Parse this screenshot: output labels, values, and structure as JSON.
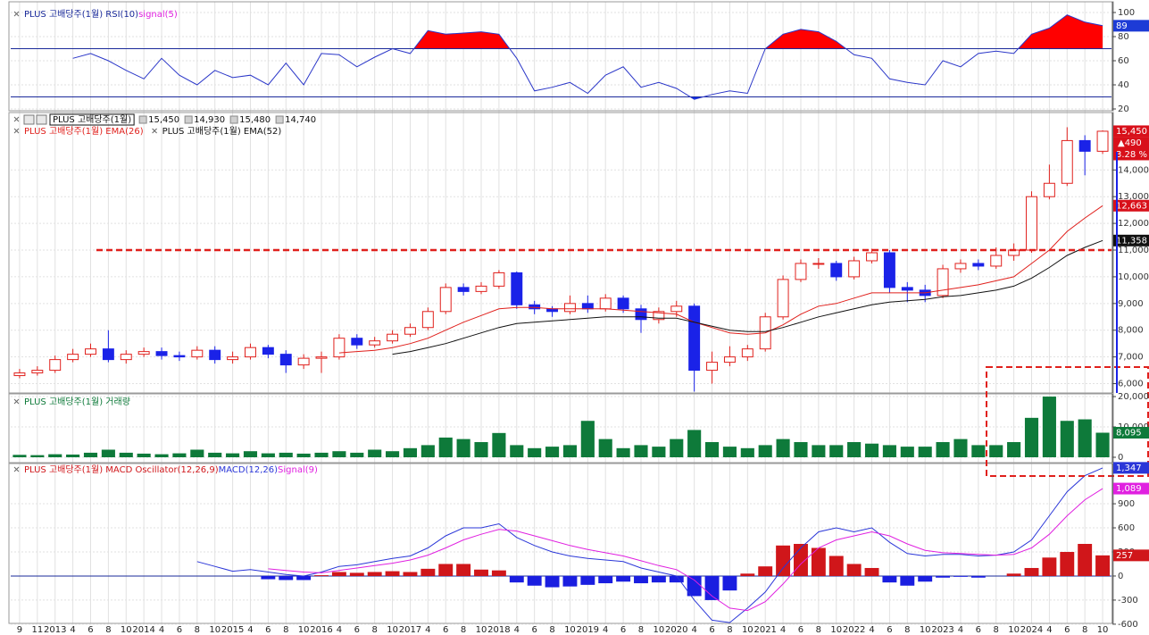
{
  "chart_data": [
    {
      "type": "rsi",
      "title": "PLUS 고배당주(1월) RSI(10)",
      "subtitle": "signal(5)",
      "series": [
        {
          "name": "RSI(10)",
          "color": "#2a36c8",
          "values": [
            null,
            null,
            null,
            62,
            66,
            60,
            52,
            45,
            62,
            48,
            40,
            52,
            46,
            48,
            40,
            58,
            40,
            66,
            65,
            55,
            63,
            70,
            66,
            85,
            82,
            83,
            84,
            82,
            62,
            35,
            38,
            42,
            33,
            48,
            55,
            38,
            42,
            37,
            28,
            32,
            35,
            33,
            70,
            82,
            86,
            84,
            76,
            65,
            62,
            45,
            42,
            40,
            60,
            55,
            66,
            68,
            66,
            82,
            87,
            98,
            92,
            89
          ]
        }
      ],
      "levels": [
        70,
        30
      ],
      "over_color": "#ff0000",
      "under_color": "#0a2cf0",
      "ylim": [
        20,
        100
      ],
      "yticks": [
        20,
        40,
        60,
        80,
        100
      ],
      "tags": [
        {
          "value": 89,
          "color": "#1d3bd6"
        }
      ]
    },
    {
      "type": "candlestick",
      "name_box": "PLUS 고배당주(1월)",
      "header_values": [
        "15,450",
        "14,930",
        "15,480",
        "14,740"
      ],
      "categories": [
        "9",
        "11",
        "2013",
        "4",
        "6",
        "8",
        "10",
        "2014",
        "4",
        "6",
        "8",
        "10",
        "2015",
        "4",
        "6",
        "8",
        "10",
        "2016",
        "4",
        "6",
        "8",
        "10",
        "2017",
        "4",
        "6",
        "8",
        "10",
        "2018",
        "4",
        "6",
        "8",
        "10",
        "2019",
        "4",
        "6",
        "8",
        "10",
        "2020",
        "4",
        "6",
        "8",
        "10",
        "2021",
        "4",
        "6",
        "8",
        "10",
        "2022",
        "4",
        "6",
        "8",
        "10",
        "2023",
        "4",
        "6",
        "8",
        "10",
        "2024",
        "4",
        "6",
        "8",
        "10"
      ],
      "open": [
        6300,
        6400,
        6500,
        6900,
        7100,
        7300,
        6900,
        7100,
        7200,
        7050,
        7000,
        7250,
        6900,
        7000,
        7350,
        7100,
        6700,
        6950,
        7000,
        7700,
        7450,
        7600,
        7850,
        8100,
        8700,
        9600,
        9450,
        9650,
        10150,
        8950,
        8800,
        8700,
        9000,
        8800,
        9200,
        8800,
        8400,
        8700,
        8900,
        6500,
        6800,
        7000,
        7300,
        8500,
        9900,
        10500,
        10500,
        10000,
        10600,
        10900,
        9600,
        9500,
        9300,
        10300,
        10500,
        10400,
        10800,
        11000,
        13000,
        13500,
        15100,
        14700
      ],
      "high": [
        6550,
        6650,
        7050,
        7300,
        7500,
        8000,
        7250,
        7350,
        7350,
        7200,
        7400,
        7400,
        7200,
        7500,
        7450,
        7250,
        7100,
        7200,
        7850,
        7850,
        7750,
        8000,
        8250,
        8850,
        9750,
        9750,
        9800,
        10250,
        10200,
        9100,
        8900,
        9300,
        9300,
        9350,
        9300,
        8950,
        8850,
        9100,
        9000,
        7200,
        7400,
        7450,
        8650,
        10050,
        10650,
        10700,
        10600,
        10750,
        11050,
        11000,
        9800,
        9700,
        10450,
        10650,
        10650,
        11100,
        11250,
        13200,
        14200,
        15600,
        15300,
        15480
      ],
      "low": [
        6200,
        6300,
        6400,
        6800,
        7000,
        6800,
        6750,
        7000,
        6900,
        6850,
        6900,
        6750,
        6750,
        6900,
        6950,
        6400,
        6550,
        6400,
        6900,
        7300,
        7350,
        7500,
        7750,
        8000,
        8600,
        9300,
        9350,
        9550,
        8800,
        8600,
        8500,
        8600,
        8650,
        8700,
        8650,
        7900,
        8250,
        8500,
        5700,
        6000,
        6650,
        6850,
        7200,
        8400,
        9800,
        10300,
        9850,
        9900,
        10500,
        9400,
        9050,
        9050,
        9200,
        10150,
        10250,
        10300,
        10600,
        10900,
        12900,
        13400,
        13800,
        14600
      ],
      "close": [
        6400,
        6500,
        6900,
        7100,
        7300,
        6900,
        7100,
        7200,
        7050,
        7000,
        7250,
        6900,
        7000,
        7350,
        7100,
        6700,
        6950,
        7000,
        7700,
        7450,
        7600,
        7850,
        8100,
        8700,
        9600,
        9450,
        9650,
        10150,
        8950,
        8800,
        8700,
        9000,
        8800,
        9200,
        8800,
        8400,
        8700,
        8900,
        6500,
        6800,
        7000,
        7300,
        8500,
        9900,
        10500,
        10500,
        10000,
        10600,
        10900,
        9600,
        9500,
        9300,
        10300,
        10500,
        10400,
        10800,
        11000,
        13000,
        13500,
        15100,
        14700,
        15450
      ],
      "up_color": "#e0201c",
      "down_color": "#1a22e8",
      "series": [
        {
          "name": "PLUS 고배당주(1월) EMA(26)",
          "color": "#e0201c",
          "values": [
            null,
            null,
            null,
            null,
            null,
            null,
            null,
            null,
            null,
            null,
            null,
            null,
            null,
            null,
            null,
            null,
            null,
            null,
            7150,
            7200,
            7250,
            7350,
            7500,
            7700,
            8000,
            8300,
            8550,
            8800,
            8850,
            8850,
            8800,
            8800,
            8800,
            8800,
            8750,
            8700,
            8650,
            8600,
            8300,
            8100,
            7900,
            7850,
            7900,
            8200,
            8600,
            8900,
            9000,
            9200,
            9400,
            9400,
            9400,
            9400,
            9500,
            9600,
            9700,
            9850,
            10000,
            10500,
            11000,
            11700,
            12200,
            12663
          ]
        },
        {
          "name": "PLUS 고배당주(1월) EMA(52)",
          "color": "#111111",
          "values": [
            null,
            null,
            null,
            null,
            null,
            null,
            null,
            null,
            null,
            null,
            null,
            null,
            null,
            null,
            null,
            null,
            null,
            null,
            null,
            null,
            null,
            7100,
            7200,
            7350,
            7500,
            7700,
            7900,
            8100,
            8250,
            8300,
            8350,
            8400,
            8450,
            8500,
            8500,
            8500,
            8450,
            8450,
            8300,
            8150,
            8000,
            7950,
            7950,
            8100,
            8300,
            8500,
            8650,
            8800,
            8950,
            9050,
            9100,
            9150,
            9250,
            9300,
            9400,
            9500,
            9650,
            9950,
            10350,
            10800,
            11100,
            11358
          ]
        }
      ],
      "hline": 11000,
      "hline_color": "#e0201c",
      "ylim": [
        5650,
        16050
      ],
      "yticks": [
        {
          "value": 6000,
          "label": "6,000"
        },
        {
          "value": 7000,
          "label": "7,000"
        },
        {
          "value": 8000,
          "label": "8,000"
        },
        {
          "value": 9000,
          "label": "9,000"
        },
        {
          "value": 10000,
          "label": "10,000"
        },
        {
          "value": 11000,
          "label": "11,000"
        },
        {
          "value": 12000,
          "label": "12,000"
        },
        {
          "value": 13000,
          "label": "13,000"
        },
        {
          "value": 14000,
          "label": "14,000"
        }
      ],
      "tags": [
        {
          "value": 15450,
          "label": "15,450",
          "color": "#d8101a"
        },
        {
          "value": 12663,
          "label": "12,663",
          "color": "#d8101a"
        },
        {
          "value": 11358,
          "label": "11,358",
          "color": "#111111"
        }
      ],
      "change": {
        "value": 490,
        "label": "▲490"
      },
      "change_pct": {
        "value": 3.28,
        "label": "3.28 %"
      }
    },
    {
      "type": "bar",
      "title": "PLUS 고배당주(1월) 거래량",
      "color": "#0e7a3a",
      "values": [
        800,
        700,
        1000,
        900,
        1500,
        2500,
        1500,
        1200,
        1000,
        1300,
        2500,
        1500,
        1300,
        2000,
        1300,
        1500,
        1200,
        1500,
        2000,
        1500,
        2500,
        2000,
        3000,
        4000,
        6500,
        6000,
        5000,
        8000,
        4000,
        3000,
        3500,
        4000,
        12000,
        6000,
        3000,
        4000,
        3500,
        6000,
        9000,
        5000,
        3500,
        3000,
        4000,
        6000,
        5000,
        4000,
        4000,
        5000,
        4500,
        4000,
        3500,
        3500,
        5000,
        6000,
        4000,
        4000,
        5000,
        13000,
        20000,
        12000,
        12500,
        8095
      ],
      "ylim": [
        0,
        20900
      ],
      "yticks": [
        0,
        {
          "value": 10000,
          "label": "10,000K"
        },
        {
          "value": 20000,
          "label": "20,000K"
        }
      ],
      "tags": [
        {
          "value": 8095,
          "label": "8,095",
          "color": "#0e7a3a"
        }
      ]
    },
    {
      "type": "macd",
      "series": [
        {
          "name": "PLUS 고배당주(1월) MACD Oscillator(12,26,9)",
          "color": "#d0161a",
          "neg_color": "#1a1ee0",
          "values": [
            null,
            null,
            null,
            null,
            null,
            null,
            null,
            null,
            null,
            null,
            null,
            null,
            null,
            null,
            -40,
            -50,
            -50,
            10,
            50,
            40,
            50,
            60,
            50,
            90,
            150,
            150,
            80,
            70,
            -80,
            -120,
            -140,
            -130,
            -110,
            -90,
            -70,
            -90,
            -80,
            -80,
            -250,
            -300,
            -180,
            30,
            120,
            380,
            400,
            350,
            250,
            150,
            100,
            -80,
            -120,
            -70,
            -20,
            -10,
            -20,
            0,
            30,
            100,
            230,
            300,
            400,
            257
          ]
        },
        {
          "name": "MACD(12,26)",
          "color": "#2a36d8",
          "values": [
            null,
            null,
            null,
            null,
            null,
            null,
            null,
            null,
            null,
            null,
            180,
            120,
            60,
            80,
            50,
            20,
            0,
            50,
            120,
            140,
            180,
            220,
            250,
            350,
            500,
            600,
            600,
            650,
            480,
            380,
            300,
            250,
            220,
            200,
            180,
            100,
            50,
            0,
            -300,
            -550,
            -580,
            -400,
            -200,
            100,
            350,
            550,
            600,
            550,
            600,
            420,
            280,
            250,
            270,
            270,
            250,
            260,
            300,
            450,
            750,
            1050,
            1250,
            1347
          ]
        },
        {
          "name": "Signal(9)",
          "color": "#e020e0",
          "values": [
            null,
            null,
            null,
            null,
            null,
            null,
            null,
            null,
            null,
            null,
            null,
            null,
            null,
            null,
            90,
            70,
            50,
            40,
            70,
            100,
            130,
            160,
            200,
            260,
            350,
            450,
            520,
            580,
            560,
            500,
            440,
            380,
            330,
            290,
            250,
            190,
            130,
            80,
            -50,
            -250,
            -400,
            -430,
            -320,
            -100,
            150,
            350,
            450,
            500,
            550,
            500,
            400,
            320,
            290,
            280,
            270,
            260,
            270,
            350,
            520,
            750,
            950,
            1089
          ]
        }
      ],
      "ylim": [
        -590,
        1390
      ],
      "yticks": [
        -600,
        -300,
        0,
        300,
        600,
        900
      ],
      "tags": [
        {
          "value": 1347,
          "label": "1,347",
          "color": "#2a36d8"
        },
        {
          "value": 1089,
          "label": "1,089",
          "color": "#e020e0"
        },
        {
          "value": 257,
          "color": "#d0161a"
        }
      ]
    }
  ]
}
